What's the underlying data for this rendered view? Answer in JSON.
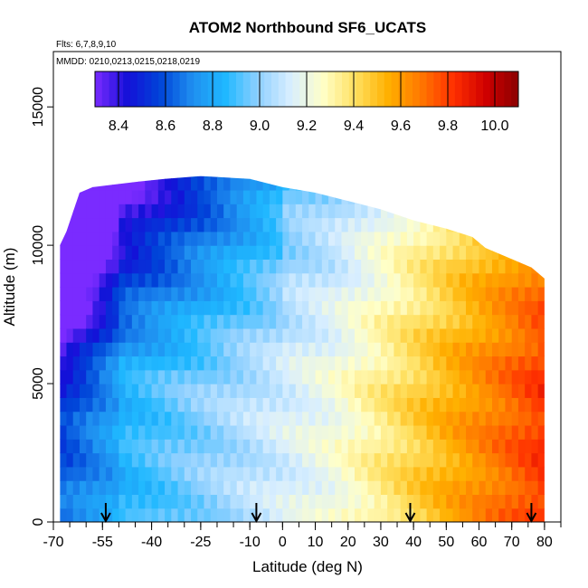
{
  "chart_data": {
    "type": "heatmap",
    "title": "ATOM2 Northbound SF6_UCATS",
    "subtitle_lines": [
      "Flts: 6,7,8,9,10",
      "MMDD: 0210,0213,0215,0218,0219"
    ],
    "xlabel": "Latitude (deg N)",
    "ylabel": "Altitude (m)",
    "xlim": [
      -70,
      85
    ],
    "ylim": [
      0,
      17000
    ],
    "x_tick_labels": [
      "-70",
      "-55",
      "-40",
      "-25",
      "-10",
      "0",
      "10",
      "20",
      "30",
      "40",
      "50",
      "60",
      "70",
      "80"
    ],
    "x_tick_values": [
      -70,
      -55,
      -40,
      -25,
      -10,
      0,
      10,
      20,
      30,
      40,
      50,
      60,
      70,
      80
    ],
    "y_tick_labels": [
      "0",
      "5000",
      "10000",
      "15000"
    ],
    "y_tick_values": [
      0,
      5000,
      10000,
      15000
    ],
    "colorbar": {
      "range": [
        8.3,
        10.1
      ],
      "tick_labels": [
        "8.4",
        "8.6",
        "8.8",
        "9.0",
        "9.2",
        "9.4",
        "9.6",
        "9.8",
        "10.0"
      ],
      "tick_values": [
        8.4,
        8.6,
        8.8,
        9.0,
        9.2,
        9.4,
        9.6,
        9.8,
        10.0
      ],
      "colors": [
        "#7a2bff",
        "#1410d8",
        "#0044d8",
        "#1f8ff0",
        "#1fb8ff",
        "#8fd0ff",
        "#d8eeff",
        "#ffffc8",
        "#ffe060",
        "#ffb000",
        "#ff7800",
        "#ff3000",
        "#d00000",
        "#8a0000"
      ]
    },
    "profile_latitudes": [
      -54,
      -8,
      39,
      76
    ],
    "data_extent": {
      "lat_min": -68,
      "lat_max": 80
    },
    "grid": false,
    "legend_position": "top"
  }
}
